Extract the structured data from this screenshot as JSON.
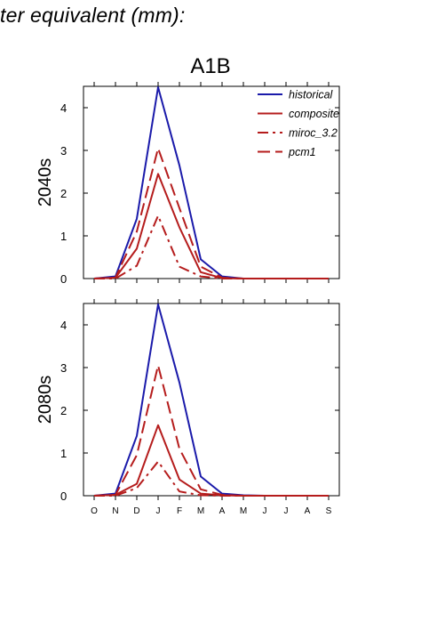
{
  "figure": {
    "heading": "ter equivalent (mm):",
    "scenario": "A1B"
  },
  "chart_data": [
    {
      "type": "line",
      "panel_label": "2040s",
      "x": [
        "O",
        "N",
        "D",
        "J",
        "F",
        "M",
        "A",
        "M",
        "J",
        "J",
        "A",
        "S"
      ],
      "ylim": [
        0,
        4.5
      ],
      "yticks": [
        0,
        1,
        2,
        3,
        4
      ],
      "legend": "top-right",
      "grid": false,
      "series": [
        {
          "name": "historical",
          "color": "#1a1aaa",
          "dash": "solid",
          "values": [
            0,
            0.05,
            1.4,
            4.48,
            2.65,
            0.45,
            0.05,
            0,
            0,
            0,
            0,
            0
          ]
        },
        {
          "name": "composite",
          "color": "#b51c1c",
          "dash": "solid",
          "values": [
            0,
            0.02,
            0.7,
            2.45,
            1.2,
            0.15,
            0.01,
            0,
            0,
            0,
            0,
            0
          ]
        },
        {
          "name": "miroc_3.2",
          "color": "#b51c1c",
          "dash": "dashdot",
          "values": [
            0,
            0,
            0.3,
            1.47,
            0.28,
            0.05,
            0,
            0,
            0,
            0,
            0,
            0
          ]
        },
        {
          "name": "pcm1",
          "color": "#b51c1c",
          "dash": "dash",
          "values": [
            0,
            0.02,
            1.1,
            3.05,
            1.65,
            0.28,
            0.02,
            0,
            0,
            0,
            0,
            0
          ]
        }
      ]
    },
    {
      "type": "line",
      "panel_label": "2080s",
      "x": [
        "O",
        "N",
        "D",
        "J",
        "F",
        "M",
        "A",
        "M",
        "J",
        "J",
        "A",
        "S"
      ],
      "ylim": [
        0,
        4.5
      ],
      "yticks": [
        0,
        1,
        2,
        3,
        4
      ],
      "grid": false,
      "series": [
        {
          "name": "historical",
          "color": "#1a1aaa",
          "dash": "solid",
          "values": [
            0,
            0.05,
            1.4,
            4.48,
            2.65,
            0.45,
            0.05,
            0.01,
            0,
            0,
            0,
            0
          ]
        },
        {
          "name": "composite",
          "color": "#b51c1c",
          "dash": "solid",
          "values": [
            0,
            0.02,
            0.28,
            1.65,
            0.38,
            0.05,
            0.01,
            0,
            0,
            0,
            0,
            0
          ]
        },
        {
          "name": "miroc_3.2",
          "color": "#b51c1c",
          "dash": "dashdot",
          "values": [
            0,
            0,
            0.18,
            0.8,
            0.1,
            0.01,
            0,
            0,
            0,
            0,
            0,
            0
          ]
        },
        {
          "name": "pcm1",
          "color": "#b51c1c",
          "dash": "dash",
          "values": [
            0,
            0.02,
            0.95,
            3.05,
            1.1,
            0.15,
            0.02,
            0,
            0,
            0,
            0,
            0
          ]
        }
      ]
    }
  ]
}
